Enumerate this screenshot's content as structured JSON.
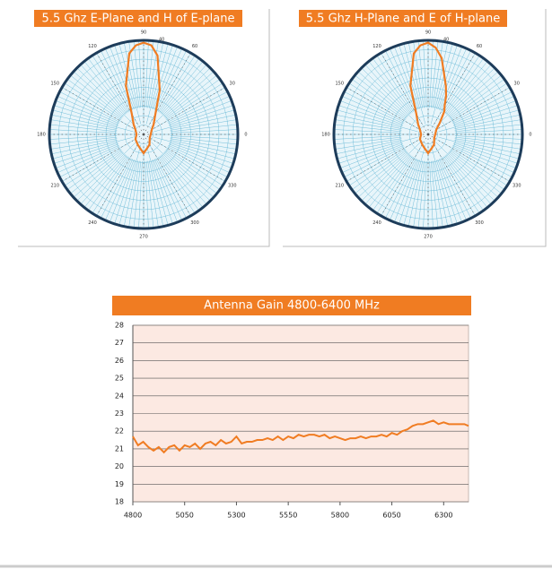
{
  "chart_data": [
    {
      "type": "polar",
      "title": "5.5 Ghz E-Plane and H of E-plane",
      "theta": [
        0,
        30,
        45,
        60,
        70,
        80,
        85,
        90,
        95,
        100,
        110,
        120,
        135,
        150,
        180,
        210,
        240,
        255,
        270,
        285,
        300,
        330
      ],
      "values": [
        3,
        4,
        6,
        10,
        20,
        34,
        38,
        39,
        38,
        35,
        22,
        10,
        6,
        4,
        3,
        4,
        5,
        6,
        8,
        6,
        5,
        3
      ],
      "color": "#f07c22",
      "rlim": [
        0,
        40
      ],
      "rticks": [
        40
      ],
      "thetaticks": [
        0,
        30,
        60,
        90,
        120,
        150,
        180,
        210,
        240,
        270,
        300,
        330
      ]
    },
    {
      "type": "polar",
      "title": "5.5 Ghz H-Plane and E of H-plane",
      "theta": [
        0,
        30,
        45,
        55,
        60,
        65,
        70,
        80,
        85,
        90,
        95,
        100,
        110,
        120,
        135,
        150,
        180,
        210,
        240,
        255,
        270,
        285,
        300,
        330
      ],
      "values": [
        3,
        4,
        7,
        12,
        14,
        18,
        22,
        33,
        37,
        39,
        38,
        35,
        22,
        10,
        6,
        4,
        3,
        4,
        5,
        6,
        8,
        6,
        5,
        3
      ],
      "color": "#f07c22",
      "rlim": [
        0,
        40
      ],
      "rticks": [
        40
      ],
      "thetaticks": [
        0,
        30,
        60,
        90,
        120,
        150,
        180,
        210,
        240,
        270,
        300,
        330
      ]
    },
    {
      "type": "line",
      "title": "Antenna Gain 4800-6400 MHz",
      "x": [
        4800,
        4825,
        4850,
        4875,
        4900,
        4925,
        4950,
        4975,
        5000,
        5025,
        5050,
        5075,
        5100,
        5125,
        5150,
        5175,
        5200,
        5225,
        5250,
        5275,
        5300,
        5325,
        5350,
        5375,
        5400,
        5425,
        5450,
        5475,
        5500,
        5525,
        5550,
        5575,
        5600,
        5625,
        5650,
        5675,
        5700,
        5725,
        5750,
        5775,
        5800,
        5825,
        5850,
        5875,
        5900,
        5925,
        5950,
        5975,
        6000,
        6025,
        6050,
        6075,
        6100,
        6125,
        6150,
        6175,
        6200,
        6225,
        6250,
        6275,
        6300,
        6325,
        6350,
        6375,
        6400,
        6420
      ],
      "values": [
        21.7,
        21.2,
        21.4,
        21.1,
        20.9,
        21.1,
        20.8,
        21.1,
        21.2,
        20.9,
        21.2,
        21.1,
        21.3,
        21.0,
        21.3,
        21.4,
        21.2,
        21.5,
        21.3,
        21.4,
        21.7,
        21.3,
        21.4,
        21.4,
        21.5,
        21.5,
        21.6,
        21.5,
        21.7,
        21.5,
        21.7,
        21.6,
        21.8,
        21.7,
        21.8,
        21.8,
        21.7,
        21.8,
        21.6,
        21.7,
        21.6,
        21.5,
        21.6,
        21.6,
        21.7,
        21.6,
        21.7,
        21.7,
        21.8,
        21.7,
        21.9,
        21.8,
        22.0,
        22.1,
        22.3,
        22.4,
        22.4,
        22.5,
        22.6,
        22.4,
        22.5,
        22.4,
        22.4,
        22.4,
        22.4,
        22.3
      ],
      "color": "#f07c22",
      "xlim": [
        4800,
        6420
      ],
      "ylim": [
        18,
        28
      ],
      "xticks": [
        4800,
        5050,
        5300,
        5550,
        5800,
        6050,
        6300
      ],
      "yticks": [
        18,
        19,
        20,
        21,
        22,
        23,
        24,
        25,
        26,
        27,
        28
      ],
      "grid": true
    }
  ]
}
